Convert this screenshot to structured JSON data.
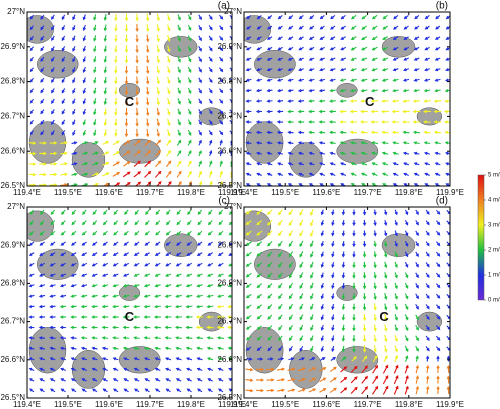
{
  "map": {
    "xlim": [
      119.4,
      119.9
    ],
    "ylim": [
      26.5,
      27.0
    ],
    "xticks": [
      {
        "value": 119.4,
        "label": "119.4°E"
      },
      {
        "value": 119.5,
        "label": "119.5°E"
      },
      {
        "value": 119.6,
        "label": "119.6°E"
      },
      {
        "value": 119.7,
        "label": "119.7°E"
      },
      {
        "value": 119.8,
        "label": "119.8°E"
      },
      {
        "value": 119.9,
        "label": "119.9°E"
      }
    ],
    "yticks": [
      {
        "value": 26.5,
        "label": "26.5°N"
      },
      {
        "value": 26.6,
        "label": "26.6°N"
      },
      {
        "value": 26.7,
        "label": "26.7°N"
      },
      {
        "value": 26.8,
        "label": "26.8°N"
      },
      {
        "value": 26.9,
        "label": "26.9°N"
      },
      {
        "value": 27.0,
        "label": "27°N"
      }
    ]
  },
  "panels": [
    {
      "label": "(a)",
      "center": {
        "text": "C",
        "lon": 119.65,
        "lat": 26.74
      }
    },
    {
      "label": "(b)",
      "center": {
        "text": "C",
        "lon": 119.705,
        "lat": 26.74
      }
    },
    {
      "label": "(c)",
      "center": {
        "text": "C",
        "lon": 119.65,
        "lat": 26.71
      }
    },
    {
      "label": "(d)",
      "center": {
        "text": "C",
        "lon": 119.74,
        "lat": 26.71
      }
    }
  ],
  "colorbar": {
    "lim": [
      0,
      5
    ],
    "colors": [
      "#6a2bd6",
      "#2030e0",
      "#20c040",
      "#f0f020",
      "#f08020",
      "#e01010"
    ],
    "ticks": [
      {
        "value": 0,
        "label": "0 m/s"
      },
      {
        "value": 1,
        "label": "1 m/s"
      },
      {
        "value": 2,
        "label": "2 m/s"
      },
      {
        "value": 3,
        "label": "3 m/s"
      },
      {
        "value": 4,
        "label": "4 m/s"
      },
      {
        "value": 5,
        "label": "5 m/s"
      }
    ]
  }
}
